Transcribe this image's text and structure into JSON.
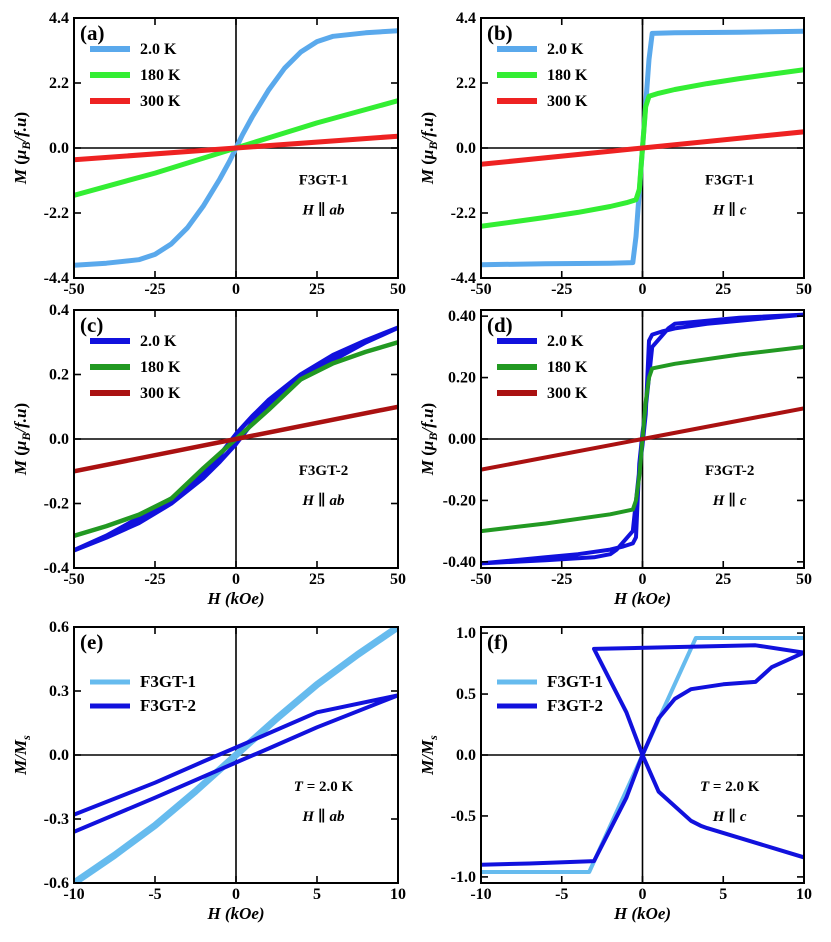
{
  "figure": {
    "colors": {
      "blue_light": "#5aa9ec",
      "green_light": "#33ee33",
      "red": "#ee2222",
      "blue": "#1111dd",
      "green": "#229922",
      "darkred": "#aa1111",
      "sky": "#66bbee"
    }
  },
  "chart_data": [
    {
      "id": "a",
      "panel_label": "(a)",
      "type": "line",
      "xlim": [
        -50,
        50
      ],
      "ylim": [
        -4.4,
        4.4
      ],
      "xticks": [
        "-50",
        "-25",
        "0",
        "25",
        "50"
      ],
      "yticks": [
        "-4.4",
        "-2.2",
        "0.0",
        "2.2",
        "4.4"
      ],
      "xlabel": "",
      "ylabel": "M (μB/f.u)",
      "annotations": [
        "F3GT-1",
        "H ∥ ab"
      ],
      "series": [
        {
          "name": "2.0 K",
          "color": "blue_light",
          "x": [
            -50,
            -40,
            -30,
            -25,
            -20,
            -15,
            -10,
            -5,
            -2,
            0,
            2,
            5,
            10,
            15,
            20,
            25,
            30,
            40,
            50
          ],
          "y": [
            -3.97,
            -3.9,
            -3.78,
            -3.6,
            -3.25,
            -2.7,
            -1.95,
            -1.05,
            -0.45,
            0.0,
            0.45,
            1.05,
            1.95,
            2.7,
            3.25,
            3.6,
            3.78,
            3.9,
            3.97
          ]
        },
        {
          "name": "180 K",
          "color": "green_light",
          "x": [
            -50,
            -25,
            0,
            25,
            50
          ],
          "y": [
            -1.6,
            -0.85,
            0.0,
            0.85,
            1.6
          ]
        },
        {
          "name": "300 K",
          "color": "red",
          "x": [
            -50,
            0,
            50
          ],
          "y": [
            -0.4,
            0.0,
            0.4
          ]
        }
      ]
    },
    {
      "id": "b",
      "panel_label": "(b)",
      "type": "line",
      "xlim": [
        -50,
        50
      ],
      "ylim": [
        -4.4,
        4.4
      ],
      "xticks": [
        "-50",
        "-25",
        "0",
        "25",
        "50"
      ],
      "yticks": [
        "-4.4",
        "-2.2",
        "0.0",
        "2.2",
        "4.4"
      ],
      "xlabel": "",
      "ylabel": "M (μB/f.u)",
      "annotations": [
        "F3GT-1",
        "H ∥ c"
      ],
      "series": [
        {
          "name": "2.0 K",
          "color": "blue_light",
          "x": [
            -50,
            -30,
            -10,
            -3,
            -2,
            0,
            2,
            3,
            10,
            30,
            50
          ],
          "y": [
            -3.95,
            -3.92,
            -3.9,
            -3.88,
            -3.0,
            0.0,
            3.0,
            3.88,
            3.9,
            3.92,
            3.95
          ]
        },
        {
          "name": "180 K",
          "color": "green_light",
          "x": [
            -50,
            -40,
            -30,
            -20,
            -10,
            -5,
            -2,
            -1,
            0,
            1,
            2,
            5,
            10,
            20,
            30,
            40,
            50
          ],
          "y": [
            -2.65,
            -2.5,
            -2.35,
            -2.18,
            -1.98,
            -1.85,
            -1.75,
            -1.4,
            0.0,
            1.4,
            1.75,
            1.85,
            1.98,
            2.18,
            2.35,
            2.5,
            2.65
          ]
        },
        {
          "name": "300 K",
          "color": "red",
          "x": [
            -50,
            0,
            50
          ],
          "y": [
            -0.55,
            0.0,
            0.55
          ]
        }
      ]
    },
    {
      "id": "c",
      "panel_label": "(c)",
      "type": "line",
      "xlim": [
        -50,
        50
      ],
      "ylim": [
        -0.4,
        0.4
      ],
      "xticks": [
        "-50",
        "-25",
        "0",
        "25",
        "50"
      ],
      "yticks": [
        "-0.4",
        "-0.2",
        "0.0",
        "0.2",
        "0.4"
      ],
      "xlabel": "H (kOe)",
      "ylabel": "M (μB/f.u)",
      "annotations": [
        "F3GT-2",
        "H ∥ ab"
      ],
      "series": [
        {
          "name": "2.0 K",
          "color": "blue",
          "x": [
            -50,
            -40,
            -30,
            -20,
            -10,
            -5,
            0,
            5,
            10,
            20,
            30,
            40,
            50,
            40,
            30,
            20,
            10,
            5,
            0,
            -5,
            -10,
            -20,
            -30,
            -40,
            -50
          ],
          "y": [
            -0.345,
            -0.3,
            -0.245,
            -0.185,
            -0.105,
            -0.05,
            0.015,
            0.07,
            0.12,
            0.2,
            0.26,
            0.305,
            0.345,
            0.3,
            0.245,
            0.185,
            0.105,
            0.05,
            -0.015,
            -0.07,
            -0.12,
            -0.2,
            -0.26,
            -0.305,
            -0.345
          ]
        },
        {
          "name": "180 K",
          "color": "green",
          "x": [
            -50,
            -40,
            -30,
            -20,
            -10,
            -5,
            0,
            5,
            10,
            20,
            30,
            40,
            50
          ],
          "y": [
            -0.3,
            -0.27,
            -0.235,
            -0.185,
            -0.09,
            -0.045,
            0.0,
            0.045,
            0.09,
            0.185,
            0.235,
            0.27,
            0.3
          ]
        },
        {
          "name": "300 K",
          "color": "darkred",
          "x": [
            -50,
            0,
            50
          ],
          "y": [
            -0.1,
            0.0,
            0.1
          ]
        }
      ]
    },
    {
      "id": "d",
      "panel_label": "(d)",
      "type": "line",
      "xlim": [
        -50,
        50
      ],
      "ylim": [
        -0.42,
        0.42
      ],
      "xticks": [
        "-50",
        "-25",
        "0",
        "25",
        "50"
      ],
      "yticks": [
        "-0.40",
        "-0.20",
        "0.00",
        "0.20",
        "0.40"
      ],
      "xlabel": "H (kOe)",
      "ylabel": "M (μB/f.u)",
      "annotations": [
        "F3GT-2",
        "H ∥ c"
      ],
      "series": [
        {
          "name": "2.0 K",
          "color": "blue",
          "x": [
            -50,
            -30,
            -15,
            -10,
            -8,
            -3,
            -1,
            0,
            1,
            2,
            3,
            6,
            10,
            20,
            30,
            50,
            30,
            20,
            10,
            8,
            3,
            1,
            0,
            -1,
            -2,
            -3,
            -6,
            -10,
            -20,
            -30,
            -50
          ],
          "y": [
            -0.405,
            -0.395,
            -0.385,
            -0.375,
            -0.36,
            -0.3,
            -0.1,
            -0.02,
            0.08,
            0.32,
            0.34,
            0.35,
            0.36,
            0.375,
            0.385,
            0.405,
            0.395,
            0.385,
            0.375,
            0.36,
            0.3,
            0.1,
            0.02,
            -0.08,
            -0.32,
            -0.34,
            -0.35,
            -0.36,
            -0.375,
            -0.385,
            -0.405
          ]
        },
        {
          "name": "180 K",
          "color": "green",
          "x": [
            -50,
            -30,
            -10,
            -3,
            -2,
            -1,
            0,
            1,
            2,
            3,
            10,
            30,
            50
          ],
          "y": [
            -0.3,
            -0.275,
            -0.245,
            -0.23,
            -0.2,
            -0.12,
            0.0,
            0.12,
            0.2,
            0.23,
            0.245,
            0.275,
            0.3
          ]
        },
        {
          "name": "300 K",
          "color": "darkred",
          "x": [
            -50,
            0,
            50
          ],
          "y": [
            -0.1,
            0.0,
            0.1
          ]
        }
      ]
    },
    {
      "id": "e",
      "panel_label": "(e)",
      "type": "line",
      "xlim": [
        -10,
        10
      ],
      "ylim": [
        -0.6,
        0.6
      ],
      "xticks": [
        "-10",
        "-5",
        "0",
        "5",
        "10"
      ],
      "yticks": [
        "-0.6",
        "-0.3",
        "0.0",
        "0.3",
        "0.6"
      ],
      "xlabel": "H (kOe)",
      "ylabel": "M/Ms",
      "annotations": [
        "T = 2.0 K",
        "H ∥ ab"
      ],
      "series": [
        {
          "name": "F3GT-1",
          "color": "sky",
          "x": [
            -10,
            -7.5,
            -5,
            -2.5,
            0,
            2.5,
            5,
            7.5,
            10
          ],
          "y": [
            -0.6,
            -0.47,
            -0.33,
            -0.17,
            0.0,
            0.17,
            0.33,
            0.47,
            0.6
          ]
        },
        {
          "name": "F3GT-2",
          "color": "blue",
          "x": [
            -10,
            -5,
            0,
            2,
            5,
            10,
            5,
            0,
            -2,
            -5,
            -10
          ],
          "y": [
            -0.36,
            -0.2,
            -0.035,
            0.03,
            0.13,
            0.28,
            0.2,
            0.035,
            -0.03,
            -0.13,
            -0.28
          ]
        }
      ]
    },
    {
      "id": "f",
      "panel_label": "(f)",
      "type": "line",
      "xlim": [
        -10,
        10
      ],
      "ylim": [
        -1.05,
        1.05
      ],
      "xticks": [
        "-10",
        "-5",
        "0",
        "5",
        "10"
      ],
      "yticks": [
        "-1.0",
        "-0.5",
        "0.0",
        "0.5",
        "1.0"
      ],
      "xlabel": "H (kOe)",
      "ylabel": "M/Ms",
      "annotations": [
        "T = 2.0 K",
        "H ∥ c"
      ],
      "series": [
        {
          "name": "F3GT-1",
          "color": "sky",
          "x": [
            -10,
            -5,
            -3.3,
            0,
            3.3,
            5,
            10
          ],
          "y": [
            -0.96,
            -0.96,
            -0.96,
            0.0,
            0.96,
            0.96,
            0.96
          ]
        },
        {
          "name": "F3GT-2",
          "color": "blue",
          "x": [
            -10,
            -7,
            -3,
            -1,
            0,
            1,
            2,
            3,
            5,
            7,
            8,
            10,
            7,
            -3,
            -1,
            0,
            1,
            3,
            3.6,
            4,
            10
          ],
          "y": [
            -0.9,
            -0.89,
            -0.87,
            -0.35,
            0.0,
            0.3,
            0.46,
            0.54,
            0.58,
            0.6,
            0.72,
            0.84,
            0.9,
            0.87,
            0.35,
            0.0,
            -0.3,
            -0.54,
            -0.58,
            -0.6,
            -0.84
          ]
        }
      ]
    }
  ]
}
